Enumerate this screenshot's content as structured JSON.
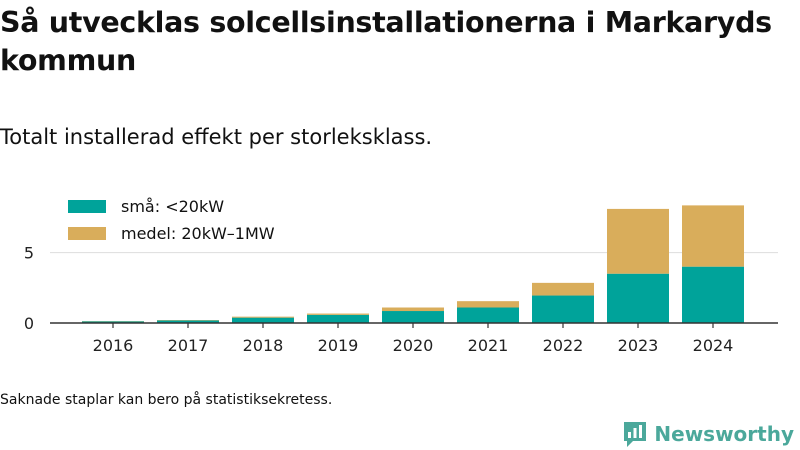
{
  "title": "Så utvecklas solcellsinstallationerna i Markaryds kommun",
  "subtitle": "Totalt installerad effekt per storleksklass.",
  "footnote": "Saknade staplar kan bero på statistiksekretess.",
  "brand": {
    "name": "Newsworthy",
    "color": "#4ba89b"
  },
  "chart_data": {
    "type": "bar",
    "stacked": true,
    "categories": [
      "2016",
      "2017",
      "2018",
      "2019",
      "2020",
      "2021",
      "2022",
      "2023",
      "2024"
    ],
    "series": [
      {
        "name": "små: <20kW",
        "color": "#00a39a",
        "values": [
          0.12,
          0.18,
          0.38,
          0.58,
          0.85,
          1.1,
          1.95,
          3.5,
          4.0
        ]
      },
      {
        "name": "medel: 20kW–1MW",
        "color": "#d9ad5b",
        "values": [
          0.02,
          0.03,
          0.07,
          0.09,
          0.25,
          0.45,
          0.9,
          4.6,
          4.35
        ]
      }
    ],
    "yticks": [
      0,
      5
    ],
    "ylim": [
      0,
      9.3
    ],
    "xlabel": "",
    "ylabel": "",
    "grid": "horizontal",
    "legend_position": "top-left"
  }
}
